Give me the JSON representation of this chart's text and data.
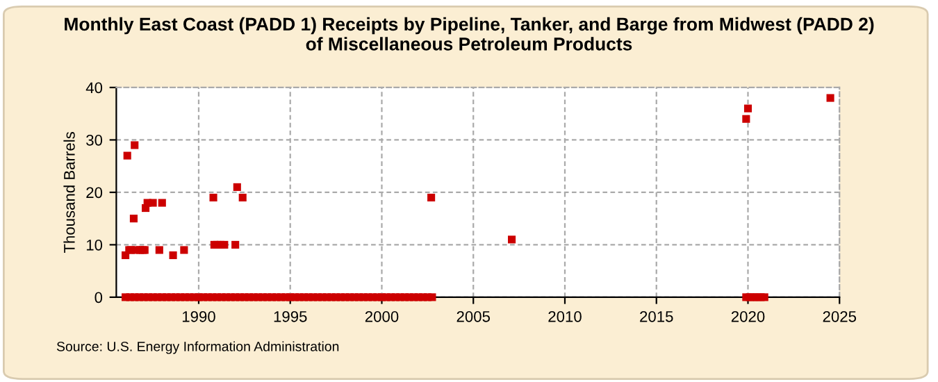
{
  "chart_data": {
    "type": "scatter",
    "title": "Monthly East Coast (PADD 1) Receipts by Pipeline, Tanker, and Barge from Midwest (PADD 2)\nof Miscellaneous Petroleum Products",
    "ylabel": "Thousand Barrels",
    "annotations": [
      "Source: U.S. Energy Information Administration"
    ],
    "x": [
      1986.0,
      1986.25,
      1986.5,
      1986.75,
      1987.0,
      1987.25,
      1987.5,
      1987.75,
      1988.0,
      1988.25,
      1988.5,
      1988.75,
      1989.0,
      1989.25,
      1989.5,
      1989.75,
      1990.0,
      1990.25,
      1990.5,
      1990.75,
      1991.0,
      1991.25,
      1991.5,
      1991.75,
      1992.0,
      1992.25,
      1992.5,
      1992.75,
      1993.0,
      1993.25,
      1993.5,
      1993.75,
      1994.0,
      1994.25,
      1994.5,
      1994.75,
      1995.0,
      1995.25,
      1995.5,
      1995.75,
      1996.0,
      1996.25,
      1996.5,
      1996.75,
      1997.0,
      1997.25,
      1997.5,
      1997.75,
      1998.0,
      1998.25,
      1998.5,
      1998.75,
      1999.0,
      1999.25,
      1999.5,
      1999.75,
      2000.0,
      2000.25,
      2000.5,
      2000.75,
      2001.0,
      2001.25,
      2001.5,
      2001.75,
      2002.0,
      2002.25,
      2002.5,
      2002.75,
      2019.9,
      2020.1,
      2020.3,
      2020.5,
      2020.7,
      2020.9,
      1986.1,
      1986.5,
      1986.45,
      1986.0,
      1986.2,
      1986.3,
      1986.6,
      1986.8,
      1986.95,
      1987.05,
      1987.1,
      1987.2,
      1987.5,
      1988.0,
      1987.85,
      1988.6,
      1989.2,
      1990.8,
      1992.1,
      1992.4,
      1990.85,
      1991.0,
      1991.2,
      1991.4,
      1992.0,
      2002.7,
      2007.1,
      2020.0,
      2019.9,
      2024.5
    ],
    "values": [
      0,
      0,
      0,
      0,
      0,
      0,
      0,
      0,
      0,
      0,
      0,
      0,
      0,
      0,
      0,
      0,
      0,
      0,
      0,
      0,
      0,
      0,
      0,
      0,
      0,
      0,
      0,
      0,
      0,
      0,
      0,
      0,
      0,
      0,
      0,
      0,
      0,
      0,
      0,
      0,
      0,
      0,
      0,
      0,
      0,
      0,
      0,
      0,
      0,
      0,
      0,
      0,
      0,
      0,
      0,
      0,
      0,
      0,
      0,
      0,
      0,
      0,
      0,
      0,
      0,
      0,
      0,
      0,
      0,
      0,
      0,
      0,
      0,
      0,
      27,
      29,
      15,
      8,
      9,
      9,
      9,
      9,
      9,
      9,
      17,
      18,
      18,
      18,
      9,
      8,
      9,
      19,
      21,
      19,
      10,
      10,
      10,
      10,
      10,
      19,
      11,
      36,
      34,
      38
    ],
    "color": "#cc0000",
    "marker": "square",
    "xlim": [
      1985.5,
      2025
    ],
    "xticks": [
      1990,
      1995,
      2000,
      2005,
      2010,
      2015,
      2020,
      2025
    ],
    "ylim": [
      0,
      40
    ],
    "yticks": [
      0,
      10,
      20,
      30,
      40
    ],
    "grid": true
  }
}
